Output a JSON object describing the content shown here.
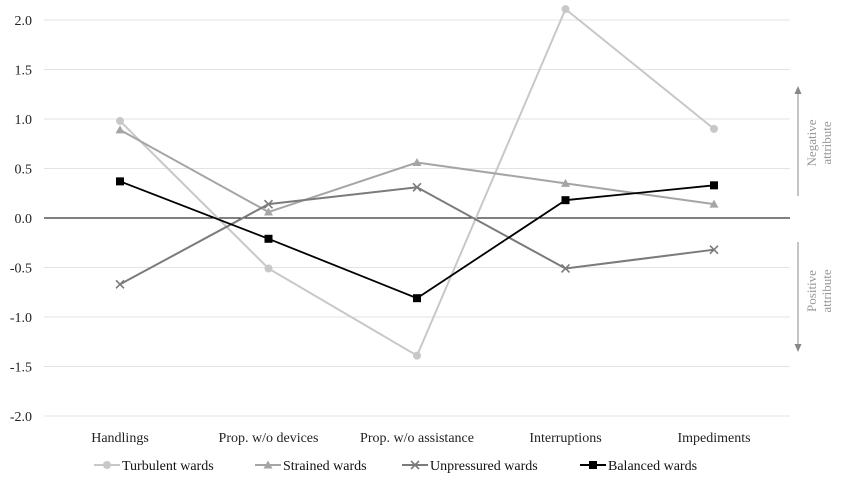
{
  "chart_data": {
    "type": "line",
    "categories": [
      "Handlings",
      "Prop. w/o devices",
      "Prop. w/o assistance",
      "Interruptions",
      "Impediments"
    ],
    "ylim": [
      -2.0,
      2.0
    ],
    "yticks": [
      "2.0",
      "1.5",
      "1.0",
      "0.5",
      "0.0",
      "-0.5",
      "-1.0",
      "-1.5",
      "-2.0"
    ],
    "ytick_values": [
      2.0,
      1.5,
      1.0,
      0.5,
      0.0,
      -0.5,
      -1.0,
      -1.5,
      -2.0
    ],
    "grid": true,
    "legend_position": "bottom",
    "series": [
      {
        "name": "Turbulent wards",
        "values": [
          0.98,
          -0.51,
          -1.39,
          2.11,
          0.9
        ],
        "color": "#c8c8c8",
        "marker": "circle"
      },
      {
        "name": "Strained wards",
        "values": [
          0.89,
          0.06,
          0.56,
          0.35,
          0.14
        ],
        "color": "#a5a5a5",
        "marker": "triangle"
      },
      {
        "name": "Unpressured wards",
        "values": [
          -0.67,
          0.14,
          0.31,
          -0.51,
          -0.32
        ],
        "color": "#7b7b7b",
        "marker": "x"
      },
      {
        "name": "Balanced wards",
        "values": [
          0.37,
          -0.21,
          -0.81,
          0.18,
          0.33
        ],
        "color": "#000000",
        "marker": "square"
      }
    ],
    "annotations": {
      "negative": [
        "Negative",
        "attribute"
      ],
      "positive": [
        "Positive",
        "attribute"
      ]
    }
  }
}
